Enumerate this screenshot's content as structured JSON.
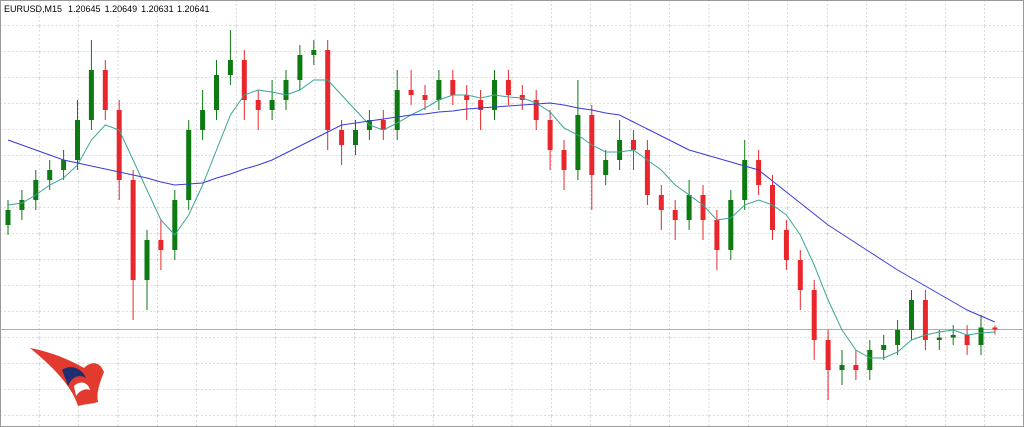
{
  "chart_data": {
    "type": "candlestick",
    "title": "EURUSD,M15",
    "ylim": [
      1.20446,
      1.213
    ],
    "up_color": "#0e7a12",
    "down_color": "#e8262b",
    "open": [
      1.2085,
      1.2088,
      1.209,
      1.2094,
      1.2096,
      1.2098,
      1.2106,
      1.2116,
      1.2108,
      1.2094,
      1.2074,
      1.2082,
      1.208,
      1.209,
      1.2104,
      1.2108,
      1.2115,
      1.2118,
      1.211,
      1.2108,
      1.211,
      1.2114,
      1.2119,
      1.212,
      1.2104,
      1.2101,
      1.2104,
      1.2106,
      1.2104,
      1.2112,
      1.2111,
      1.211,
      1.2114,
      1.2111,
      1.211,
      1.2108,
      1.2114,
      1.2111,
      1.211,
      1.2106,
      1.21,
      1.2096,
      1.2107,
      1.2095,
      1.2098,
      1.2102,
      1.21,
      1.2091,
      1.2088,
      1.2086,
      1.2091,
      1.2086,
      1.208,
      1.209,
      1.2098,
      1.2093,
      1.2084,
      1.2078,
      1.2072,
      1.2062,
      1.2056,
      1.2057,
      1.2056,
      1.206,
      1.2061,
      1.2064,
      1.207,
      1.2062,
      1.20625,
      1.2063,
      1.2061,
      1.20645
    ],
    "high": [
      1.209,
      1.2092,
      1.2096,
      1.2098,
      1.21,
      1.211,
      1.2122,
      1.2118,
      1.211,
      1.2096,
      1.2084,
      1.2086,
      1.2092,
      1.2106,
      1.2112,
      1.2118,
      1.2124,
      1.212,
      1.2112,
      1.2114,
      1.2116,
      1.2121,
      1.2122,
      1.2122,
      1.2106,
      1.2106,
      1.2108,
      1.2108,
      1.2116,
      1.2116,
      1.2113,
      1.2116,
      1.2116,
      1.2113,
      1.2112,
      1.2116,
      1.2116,
      1.2113,
      1.2112,
      1.2108,
      1.2102,
      1.2114,
      1.2109,
      1.21,
      1.2106,
      1.2104,
      1.2102,
      1.2093,
      1.209,
      1.2094,
      1.2093,
      1.2088,
      1.2092,
      1.2102,
      1.21,
      1.2095,
      1.2086,
      1.208,
      1.2074,
      1.2064,
      1.206,
      1.206,
      1.2062,
      1.2063,
      1.2066,
      1.2072,
      1.2072,
      1.2064,
      1.2065,
      1.2065,
      1.2067,
      1.20649
    ],
    "low": [
      1.2083,
      1.2086,
      1.2088,
      1.2092,
      1.2094,
      1.2096,
      1.2104,
      1.2106,
      1.209,
      1.2066,
      1.2068,
      1.2076,
      1.2078,
      1.2088,
      1.2102,
      1.2106,
      1.2113,
      1.2106,
      1.2104,
      1.2106,
      1.2108,
      1.2112,
      1.2117,
      1.21,
      1.2097,
      1.2099,
      1.2102,
      1.2102,
      1.2102,
      1.2109,
      1.2108,
      1.2108,
      1.2109,
      1.2106,
      1.2104,
      1.2106,
      1.2109,
      1.2108,
      1.2104,
      1.2096,
      1.2092,
      1.2094,
      1.2088,
      1.2093,
      1.2096,
      1.2096,
      1.2089,
      1.2084,
      1.2082,
      1.2084,
      1.2082,
      1.2076,
      1.2078,
      1.2088,
      1.2091,
      1.2082,
      1.2076,
      1.2068,
      1.2058,
      1.205,
      1.2053,
      1.2054,
      1.2054,
      1.2058,
      1.2059,
      1.2062,
      1.206,
      1.206,
      1.2061,
      1.2059,
      1.2059,
      1.20631
    ],
    "close": [
      1.2088,
      1.209,
      1.2094,
      1.2096,
      1.2098,
      1.2106,
      1.2116,
      1.2108,
      1.2094,
      1.2074,
      1.2082,
      1.208,
      1.209,
      1.2104,
      1.2108,
      1.2115,
      1.2118,
      1.211,
      1.2108,
      1.211,
      1.2114,
      1.2119,
      1.212,
      1.2104,
      1.2101,
      1.2104,
      1.2106,
      1.2104,
      1.2112,
      1.2111,
      1.211,
      1.2114,
      1.2111,
      1.211,
      1.2108,
      1.2114,
      1.2111,
      1.211,
      1.2106,
      1.21,
      1.2096,
      1.2107,
      1.2095,
      1.2098,
      1.2102,
      1.21,
      1.2091,
      1.2088,
      1.2086,
      1.2091,
      1.2086,
      1.208,
      1.209,
      1.2098,
      1.2093,
      1.2084,
      1.2078,
      1.2072,
      1.2062,
      1.2056,
      1.2057,
      1.2056,
      1.206,
      1.2061,
      1.2064,
      1.207,
      1.2062,
      1.20625,
      1.2063,
      1.2061,
      1.20645,
      1.20641
    ],
    "lines": [
      {
        "color": "#3aa597",
        "values": [
          1.2089,
          1.20894,
          1.2091,
          1.2093,
          1.20944,
          1.2097,
          1.2102,
          1.2105,
          1.2104,
          1.2098,
          1.2092,
          1.2086,
          1.2083,
          1.2087,
          1.2093,
          1.21,
          1.2107,
          1.2111,
          1.2112,
          1.21116,
          1.2111,
          1.2112,
          1.2114,
          1.2114,
          1.2111,
          1.2108,
          1.2105,
          1.2104,
          1.21054,
          1.2107,
          1.21084,
          1.211,
          1.2111,
          1.2111,
          1.21104,
          1.2111,
          1.21106,
          1.21104,
          1.21094,
          1.21076,
          1.21044,
          1.2103,
          1.2101,
          1.20996,
          1.20996,
          1.21,
          1.2098,
          1.2096,
          1.2093,
          1.2091,
          1.2089,
          1.2086,
          1.20864,
          1.2089,
          1.209,
          1.2089,
          1.2087,
          1.2083,
          1.2077,
          1.207,
          1.2064,
          1.206,
          1.20584,
          1.20584,
          1.20596,
          1.2062,
          1.2063,
          1.20636,
          1.2064,
          1.2063,
          1.20634,
          1.20636
        ]
      },
      {
        "color": "#3a3ad8",
        "values": [
          1.2102,
          1.2101,
          1.21,
          1.2099,
          1.2098,
          1.20974,
          1.20968,
          1.20962,
          1.20956,
          1.2095,
          1.20944,
          1.20936,
          1.2093,
          1.20932,
          1.20934,
          1.20944,
          1.20952,
          1.20962,
          1.2097,
          1.2098,
          1.20994,
          1.21008,
          1.21022,
          1.21036,
          1.2105,
          1.21054,
          1.21058,
          1.21062,
          1.21066,
          1.2107,
          1.21072,
          1.21076,
          1.21078,
          1.21082,
          1.21084,
          1.21086,
          1.21088,
          1.2109,
          1.21092,
          1.21094,
          1.2109,
          1.21084,
          1.2108,
          1.21074,
          1.2107,
          1.21056,
          1.21042,
          1.21028,
          1.21014,
          1.21,
          1.20992,
          1.20984,
          1.20976,
          1.20968,
          1.2096,
          1.20938,
          1.20916,
          1.20894,
          1.20872,
          1.2085,
          1.20832,
          1.20814,
          1.20796,
          1.20778,
          1.2076,
          1.20744,
          1.20728,
          1.20712,
          1.20696,
          1.2068,
          1.20668,
          1.20656
        ]
      }
    ],
    "bid_line_color": "#9fb0c4"
  }
}
